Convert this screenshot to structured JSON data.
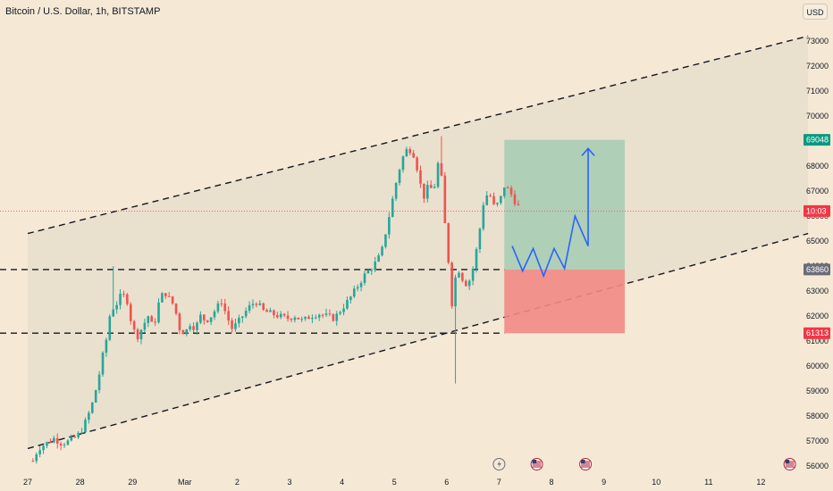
{
  "header": {
    "symbol_title": "Bitcoin / U.S. Dollar, 1h, BITSTAMP",
    "currency_button": "USD"
  },
  "colors": {
    "background": "#f5e9d6",
    "up_candle": "#26a69a",
    "down_candle": "#ef5350",
    "profit_zone": "#a9cdb5",
    "loss_zone": "#f28b85",
    "projection_path": "#2962ff",
    "channel_fill": "#e6dccb",
    "current_price_line": "#f23645"
  },
  "chart_data": {
    "type": "candlestick",
    "title": "Bitcoin / U.S. Dollar, 1h, BITSTAMP",
    "ylim": [
      55800,
      73500
    ],
    "y_ticks": [
      56000,
      57000,
      58000,
      59000,
      60000,
      61000,
      62000,
      63000,
      64000,
      65000,
      66000,
      67000,
      68000,
      69000,
      70000,
      71000,
      72000,
      73000
    ],
    "x_ticks": [
      {
        "label": "27",
        "day": 0
      },
      {
        "label": "28",
        "day": 1
      },
      {
        "label": "29",
        "day": 2
      },
      {
        "label": "Mar",
        "day": 3
      },
      {
        "label": "2",
        "day": 4
      },
      {
        "label": "3",
        "day": 5
      },
      {
        "label": "4",
        "day": 6
      },
      {
        "label": "5",
        "day": 7
      },
      {
        "label": "6",
        "day": 8
      },
      {
        "label": "7",
        "day": 9
      },
      {
        "label": "8",
        "day": 10
      },
      {
        "label": "9",
        "day": 11
      },
      {
        "label": "10",
        "day": 12
      },
      {
        "label": "11",
        "day": 13
      },
      {
        "label": "12",
        "day": 14
      }
    ],
    "price_path": [
      [
        0.1,
        56200
      ],
      [
        0.2,
        56700
      ],
      [
        0.35,
        56900
      ],
      [
        0.5,
        57100
      ],
      [
        0.65,
        56900
      ],
      [
        0.8,
        57000
      ],
      [
        0.95,
        57200
      ],
      [
        1.05,
        57500
      ],
      [
        1.15,
        58000
      ],
      [
        1.25,
        58600
      ],
      [
        1.35,
        59500
      ],
      [
        1.45,
        60600
      ],
      [
        1.55,
        61500
      ],
      [
        1.6,
        63000
      ],
      [
        1.65,
        62000
      ],
      [
        1.7,
        62500
      ],
      [
        1.8,
        62900
      ],
      [
        1.9,
        62600
      ],
      [
        2.0,
        61500
      ],
      [
        2.1,
        61200
      ],
      [
        2.2,
        61600
      ],
      [
        2.3,
        62000
      ],
      [
        2.4,
        61500
      ],
      [
        2.5,
        62500
      ],
      [
        2.6,
        63000
      ],
      [
        2.7,
        62700
      ],
      [
        2.8,
        62400
      ],
      [
        2.9,
        61500
      ],
      [
        3.0,
        61300
      ],
      [
        3.1,
        61700
      ],
      [
        3.2,
        61500
      ],
      [
        3.3,
        62000
      ],
      [
        3.4,
        61800
      ],
      [
        3.5,
        62000
      ],
      [
        3.6,
        62300
      ],
      [
        3.7,
        62600
      ],
      [
        3.8,
        62000
      ],
      [
        3.9,
        61500
      ],
      [
        4.0,
        61700
      ],
      [
        4.1,
        62000
      ],
      [
        4.2,
        62300
      ],
      [
        4.35,
        62600
      ],
      [
        4.5,
        62200
      ],
      [
        4.65,
        62100
      ],
      [
        4.8,
        62000
      ],
      [
        4.95,
        61900
      ],
      [
        5.1,
        62000
      ],
      [
        5.25,
        61800
      ],
      [
        5.4,
        62000
      ],
      [
        5.55,
        62100
      ],
      [
        5.7,
        62000
      ],
      [
        5.85,
        61900
      ],
      [
        6.0,
        62300
      ],
      [
        6.15,
        62700
      ],
      [
        6.3,
        63200
      ],
      [
        6.45,
        63700
      ],
      [
        6.6,
        64000
      ],
      [
        6.75,
        64500
      ],
      [
        6.85,
        65500
      ],
      [
        6.95,
        66500
      ],
      [
        7.05,
        67500
      ],
      [
        7.15,
        68300
      ],
      [
        7.25,
        68700
      ],
      [
        7.35,
        68600
      ],
      [
        7.45,
        67800
      ],
      [
        7.55,
        66700
      ],
      [
        7.65,
        67200
      ],
      [
        7.75,
        67000
      ],
      [
        7.85,
        68300
      ],
      [
        7.9,
        67500
      ],
      [
        7.95,
        66000
      ],
      [
        8.0,
        65000
      ],
      [
        8.05,
        63800
      ],
      [
        8.1,
        62500
      ],
      [
        8.15,
        63300
      ],
      [
        8.2,
        64000
      ],
      [
        8.3,
        63500
      ],
      [
        8.4,
        63200
      ],
      [
        8.5,
        63900
      ],
      [
        8.6,
        65000
      ],
      [
        8.7,
        66500
      ],
      [
        8.8,
        67000
      ],
      [
        8.9,
        66400
      ],
      [
        9.0,
        66500
      ],
      [
        9.1,
        67200
      ],
      [
        9.2,
        67000
      ],
      [
        9.3,
        66600
      ],
      [
        9.42,
        66200
      ]
    ],
    "wick_extremes": [
      {
        "day": 7.9,
        "high": 69200
      },
      {
        "day": 8.15,
        "low": 59300
      },
      {
        "day": 1.65,
        "high": 64000
      }
    ],
    "current_price": 66200,
    "price_badges": [
      {
        "price": 69048,
        "label": "69048",
        "color": "#089981"
      },
      {
        "price": 66200,
        "label": "10:03",
        "color": "#f23645"
      },
      {
        "price": 63860,
        "label": "63860",
        "color": "#6a6d78"
      },
      {
        "price": 61313,
        "label": "61313",
        "color": "#f23645"
      }
    ],
    "horizontal_levels": [
      63860,
      61313
    ],
    "channel": {
      "upper": {
        "from": [
          0.0,
          65300
        ],
        "to": [
          14.9,
          73200
        ]
      },
      "lower": {
        "from": [
          0.0,
          56700
        ],
        "to": [
          14.9,
          65300
        ]
      }
    },
    "position_tool": {
      "start_day": 9.1,
      "end_day": 11.4,
      "target": 69048,
      "entry": 63860,
      "stop": 61313
    },
    "projection_path": [
      [
        9.25,
        64800
      ],
      [
        9.45,
        63800
      ],
      [
        9.65,
        64700
      ],
      [
        9.85,
        63600
      ],
      [
        10.05,
        64700
      ],
      [
        10.25,
        63900
      ],
      [
        10.45,
        66000
      ],
      [
        10.7,
        64800
      ],
      [
        10.7,
        68700
      ]
    ],
    "event_markers": [
      {
        "day": 9.0,
        "icon": "lightning-icon"
      },
      {
        "day": 9.72,
        "icon": "us-flag-icon"
      },
      {
        "day": 10.65,
        "icon": "us-flag-icon"
      },
      {
        "day": 14.55,
        "icon": "us-flag-icon"
      }
    ]
  }
}
